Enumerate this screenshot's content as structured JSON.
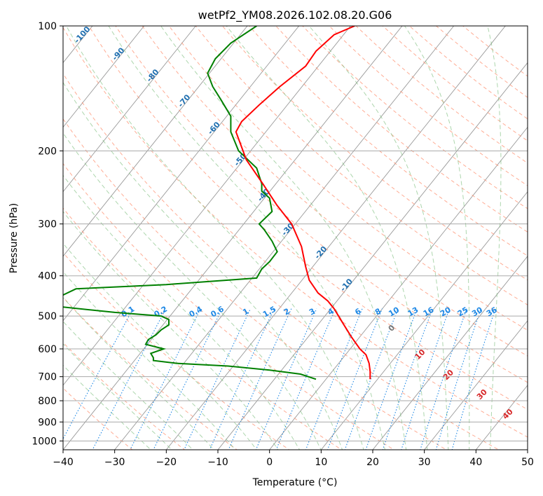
{
  "chart_data": {
    "type": "skew-t",
    "title": "wetPf2_YM08.2026.102.08.20.G06",
    "xlabel": "Temperature (°C)",
    "ylabel": "Pressure (hPa)",
    "xlim": [
      -40,
      50
    ],
    "ylim": [
      1050,
      100
    ],
    "x_ticks": [
      -40,
      -30,
      -20,
      -10,
      0,
      10,
      20,
      30,
      40,
      50
    ],
    "x_tick_labels": [
      "−40",
      "−30",
      "−20",
      "−10",
      "0",
      "10",
      "20",
      "30",
      "40",
      "50"
    ],
    "y_ticks": [
      100,
      200,
      300,
      400,
      500,
      600,
      700,
      800,
      900,
      1000
    ],
    "y_tick_labels": [
      "100",
      "200",
      "300",
      "400",
      "500",
      "600",
      "700",
      "800",
      "900",
      "1000"
    ],
    "colors": {
      "temperature": "#ff0000",
      "dewpoint": "#008000",
      "isotherm": "#999999",
      "dry_adiabat": "#ff9070",
      "moist_adiabat": "#77bb77",
      "mixing_ratio": "#1e88e5",
      "isotherm_label": "#1f6fb0",
      "moist_label": "#d62728",
      "zero_label": "#777777"
    },
    "temperature_profile": {
      "name": "Temperature",
      "pressure": [
        710,
        680,
        650,
        620,
        600,
        560,
        520,
        480,
        460,
        440,
        410,
        380,
        340,
        300,
        270,
        240,
        210,
        180,
        170,
        155,
        140,
        125,
        115,
        105,
        100
      ],
      "temp": [
        19.5,
        19.5,
        19.3,
        18.7,
        17.5,
        15.8,
        14.2,
        12.5,
        11.3,
        9.4,
        7.7,
        7.0,
        6.2,
        4.3,
        1.4,
        -1.3,
        -4.5,
        -6.5,
        -5.4,
        -2.0,
        2.0,
        7.0,
        9.0,
        12.5,
        16.5
      ]
    },
    "dewpoint_profile": {
      "name": "Dewpoint",
      "pressure": [
        710,
        690,
        675,
        660,
        650,
        640,
        630,
        615,
        600,
        585,
        570,
        555,
        540,
        525,
        510,
        500,
        490,
        475,
        460,
        445,
        430,
        420,
        405,
        395,
        385,
        370,
        350,
        330,
        310,
        300,
        280,
        260,
        250,
        240,
        220,
        200,
        180,
        165,
        150,
        140,
        130,
        120,
        110,
        100
      ],
      "dewpoint": [
        9.0,
        6.0,
        0.0,
        -8.0,
        -18.0,
        -22.5,
        -22.5,
        -23.0,
        -20.5,
        -24.0,
        -23.5,
        -22.0,
        -21.0,
        -19.5,
        -19.5,
        -21.0,
        -30.0,
        -40.5,
        -40.5,
        -40.0,
        -37.5,
        -20.0,
        -2.5,
        -2.0,
        -1.5,
        0.0,
        1.5,
        0.5,
        -1.0,
        -2.0,
        0.5,
        0.0,
        -1.5,
        -1.5,
        -2.5,
        -6.0,
        -7.5,
        -7.5,
        -9.5,
        -11.0,
        -12.0,
        -10.5,
        -7.5,
        -2.5
      ]
    },
    "isotherm_labels": [
      "-100",
      "-90",
      "-80",
      "-70",
      "-60",
      "-50",
      "-40",
      "-30",
      "-20",
      "-10"
    ],
    "isotherm_label_values": [
      -100,
      -90,
      -80,
      -70,
      -60,
      -50,
      -40,
      -30,
      -20,
      -10
    ],
    "mixing_ratio_labels": [
      "0.1",
      "0.2",
      "0.4",
      "0.6",
      "1",
      "1.5",
      "2",
      "3",
      "4",
      "6",
      "8",
      "10",
      "13",
      "16",
      "20",
      "25",
      "30",
      "36"
    ],
    "mixing_ratio_values": [
      0.1,
      0.2,
      0.4,
      0.6,
      1,
      1.5,
      2,
      3,
      4,
      6,
      8,
      10,
      13,
      16,
      20,
      25,
      30,
      36
    ],
    "moist_adiabat_labels": [
      "0",
      "10",
      "20",
      "30",
      "40"
    ],
    "moist_adiabat_label_values": [
      0,
      10,
      20,
      30,
      40
    ]
  }
}
